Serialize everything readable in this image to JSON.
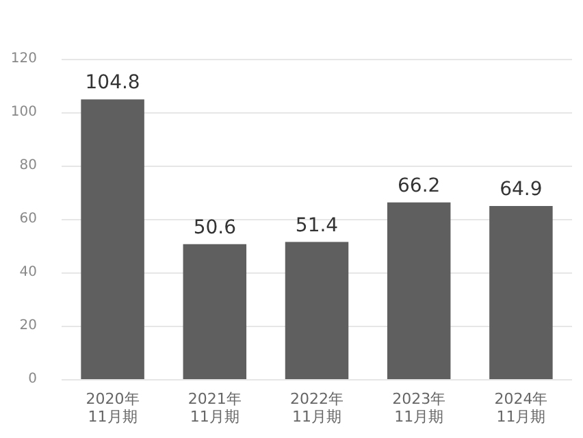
{
  "chart_data": {
    "type": "bar",
    "categories": [
      "2020年\n11月期",
      "2021年\n11月期",
      "2022年\n11月期",
      "2023年\n11月期",
      "2024年\n11月期"
    ],
    "values": [
      104.8,
      50.6,
      51.4,
      66.2,
      64.9
    ],
    "color": "#5f5f5f",
    "ylim": [
      0,
      120
    ],
    "yticks": [
      0,
      20,
      40,
      60,
      80,
      100,
      120
    ],
    "grid": "y",
    "data_labels": true
  }
}
